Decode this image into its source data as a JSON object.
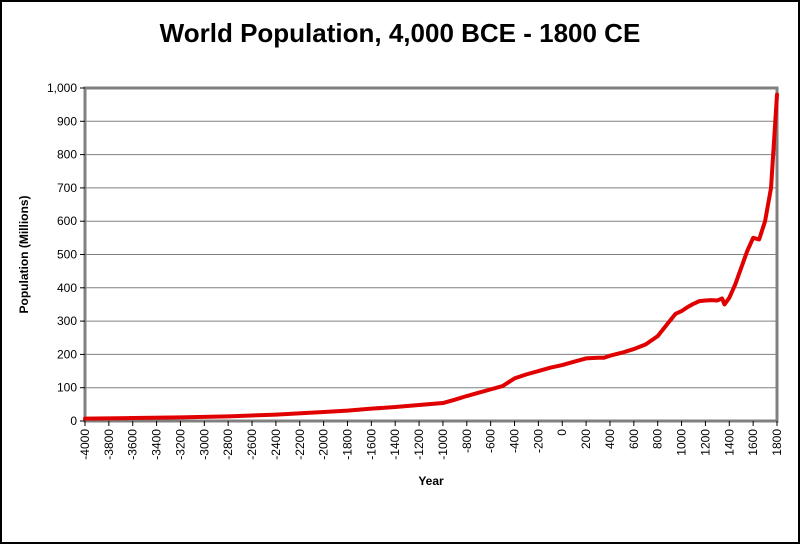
{
  "chart_data": {
    "type": "line",
    "title": "World Population, 4,000 BCE - 1800 CE",
    "xlabel": "Year",
    "ylabel": "Population (Millions)",
    "xlim": [
      -4000,
      1800
    ],
    "ylim": [
      0,
      1000
    ],
    "x_ticks": [
      -4000,
      -3800,
      -3600,
      -3400,
      -3200,
      -3000,
      -2800,
      -2600,
      -2400,
      -2200,
      -2000,
      -1800,
      -1600,
      -1400,
      -1200,
      -1000,
      -800,
      -600,
      -400,
      -200,
      0,
      200,
      400,
      600,
      800,
      1000,
      1200,
      1400,
      1600,
      1800
    ],
    "y_ticks": [
      0,
      100,
      200,
      300,
      400,
      500,
      600,
      700,
      800,
      900,
      1000
    ],
    "y_tick_labels": [
      "0",
      "100",
      "200",
      "300",
      "400",
      "500",
      "600",
      "700",
      "800",
      "900",
      "1,000"
    ],
    "grid": "horizontal",
    "legend": "none",
    "colors": {
      "line": "#e00000",
      "plot_border": "#808080",
      "grid": "#808080"
    },
    "series": [
      {
        "x": [
          -4000,
          -3600,
          -3200,
          -2800,
          -2400,
          -2000,
          -1800,
          -1600,
          -1400,
          -1200,
          -1000,
          -900,
          -800,
          -700,
          -600,
          -500,
          -400,
          -300,
          -200,
          -100,
          0,
          100,
          200,
          300,
          350,
          400,
          500,
          600,
          700,
          800,
          900,
          950,
          1000,
          1050,
          1100,
          1150,
          1200,
          1250,
          1300,
          1340,
          1360,
          1400,
          1450,
          1500,
          1550,
          1600,
          1650,
          1700,
          1750,
          1800
        ],
        "y": [
          7,
          9,
          11,
          14,
          19,
          27,
          31,
          37,
          42,
          48,
          54,
          64,
          75,
          85,
          95,
          105,
          128,
          140,
          150,
          160,
          168,
          178,
          188,
          190,
          190,
          196,
          205,
          216,
          230,
          255,
          300,
          322,
          330,
          342,
          352,
          360,
          362,
          363,
          362,
          368,
          350,
          370,
          410,
          460,
          510,
          550,
          545,
          600,
          700,
          980
        ]
      }
    ]
  }
}
